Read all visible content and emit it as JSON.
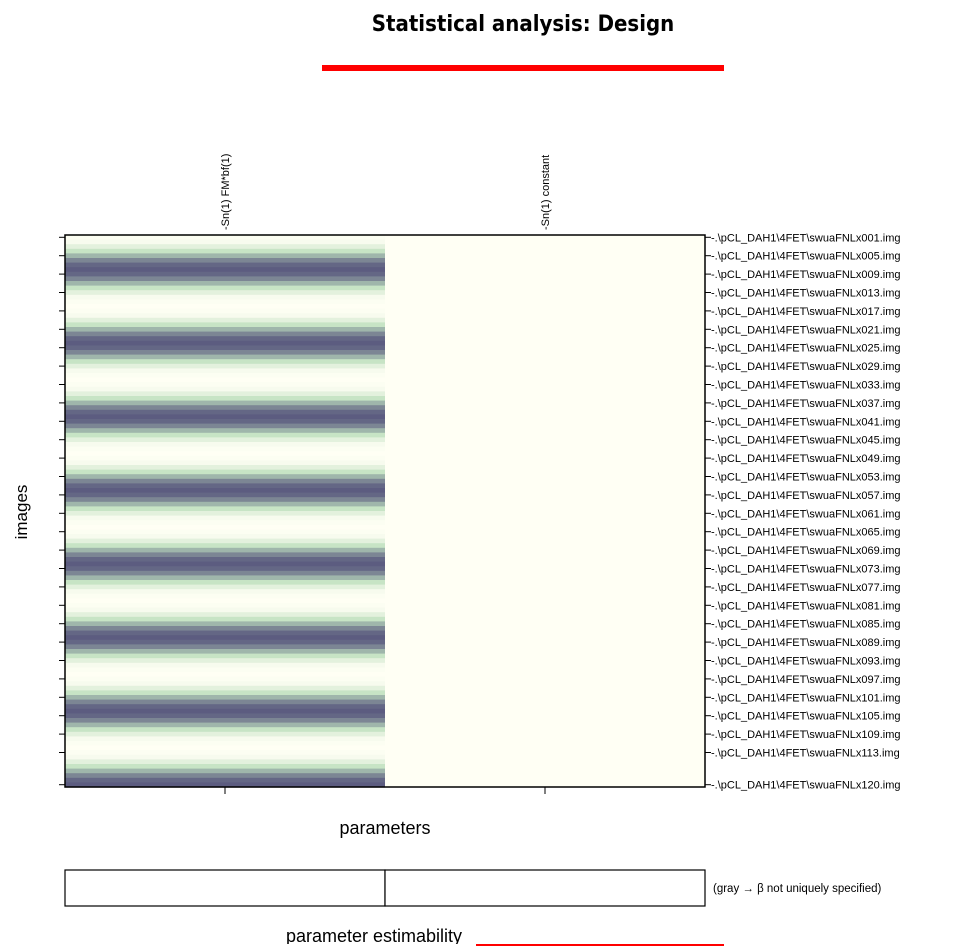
{
  "title": "Statistical analysis: Design",
  "chart_data": {
    "type": "heatmap",
    "xlabel": "parameters",
    "ylabel": "images",
    "columns": [
      "Sn(1) FM*bf(1)",
      "Sn(1) constant"
    ],
    "row_tick_labels": [
      ".\\pCL_DAH1\\4FET\\swuaFNLx001.img",
      ".\\pCL_DAH1\\4FET\\swuaFNLx005.img",
      ".\\pCL_DAH1\\4FET\\swuaFNLx009.img",
      ".\\pCL_DAH1\\4FET\\swuaFNLx013.img",
      ".\\pCL_DAH1\\4FET\\swuaFNLx017.img",
      ".\\pCL_DAH1\\4FET\\swuaFNLx021.img",
      ".\\pCL_DAH1\\4FET\\swuaFNLx025.img",
      ".\\pCL_DAH1\\4FET\\swuaFNLx029.img",
      ".\\pCL_DAH1\\4FET\\swuaFNLx033.img",
      ".\\pCL_DAH1\\4FET\\swuaFNLx037.img",
      ".\\pCL_DAH1\\4FET\\swuaFNLx041.img",
      ".\\pCL_DAH1\\4FET\\swuaFNLx045.img",
      ".\\pCL_DAH1\\4FET\\swuaFNLx049.img",
      ".\\pCL_DAH1\\4FET\\swuaFNLx053.img",
      ".\\pCL_DAH1\\4FET\\swuaFNLx057.img",
      ".\\pCL_DAH1\\4FET\\swuaFNLx061.img",
      ".\\pCL_DAH1\\4FET\\swuaFNLx065.img",
      ".\\pCL_DAH1\\4FET\\swuaFNLx069.img",
      ".\\pCL_DAH1\\4FET\\swuaFNLx073.img",
      ".\\pCL_DAH1\\4FET\\swuaFNLx077.img",
      ".\\pCL_DAH1\\4FET\\swuaFNLx081.img",
      ".\\pCL_DAH1\\4FET\\swuaFNLx085.img",
      ".\\pCL_DAH1\\4FET\\swuaFNLx089.img",
      ".\\pCL_DAH1\\4FET\\swuaFNLx093.img",
      ".\\pCL_DAH1\\4FET\\swuaFNLx097.img",
      ".\\pCL_DAH1\\4FET\\swuaFNLx101.img",
      ".\\pCL_DAH1\\4FET\\swuaFNLx105.img",
      ".\\pCL_DAH1\\4FET\\swuaFNLx109.img",
      ".\\pCL_DAH1\\4FET\\swuaFNLx113.img",
      ".\\pCL_DAH1\\4FET\\swuaFNLx120.img"
    ],
    "row_tick_numbers": [
      1,
      5,
      9,
      13,
      17,
      21,
      25,
      29,
      33,
      37,
      41,
      45,
      49,
      53,
      57,
      61,
      65,
      69,
      73,
      77,
      81,
      85,
      89,
      93,
      97,
      101,
      105,
      109,
      113,
      120
    ],
    "n_rows": 120,
    "regressor_period": 16,
    "regressor_profile": [
      0.98,
      0.94,
      0.78,
      0.56,
      0.34,
      0.16,
      0.04,
      0.0,
      0.04,
      0.16,
      0.34,
      0.56,
      0.78,
      0.94,
      0.98,
      1.0
    ],
    "constant_value": 1.0,
    "colors": {
      "low": "#5c5c80",
      "mid": "#bfe0bf",
      "high": "#fffff4"
    },
    "estimability": {
      "label": "parameter estimability",
      "note": "(gray → β not uniquely specified)",
      "cells": [
        false,
        false
      ]
    }
  }
}
